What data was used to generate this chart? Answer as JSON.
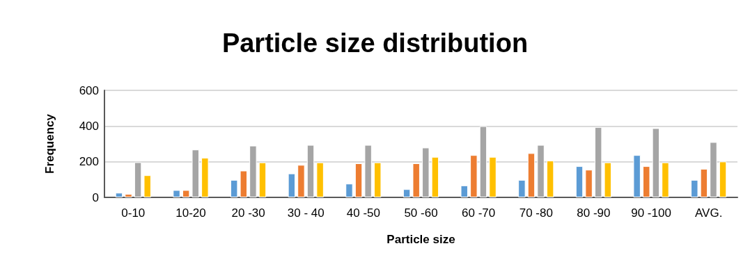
{
  "chart_data": {
    "type": "bar",
    "title": "Particle size distribution",
    "xlabel": "Particle size",
    "ylabel": "Frequency",
    "categories": [
      "0-10",
      "10-20",
      "20 -30",
      "30 - 40",
      "40 -50",
      "50 -60",
      "60 -70",
      "70 -80",
      "80 -90",
      "90 -100",
      "AVG."
    ],
    "series": [
      {
        "color": "#5b9bd5",
        "values": [
          26,
          41,
          98,
          134,
          77,
          46,
          67,
          98,
          175,
          237,
          98
        ]
      },
      {
        "color": "#ed7d31",
        "values": [
          19,
          41,
          150,
          182,
          191,
          191,
          237,
          248,
          155,
          175,
          160
        ]
      },
      {
        "color": "#a5a5a5",
        "values": [
          197,
          268,
          290,
          294,
          294,
          279,
          399,
          294,
          394,
          388,
          310
        ]
      },
      {
        "color": "#ffc000",
        "values": [
          124,
          222,
          196,
          196,
          196,
          227,
          227,
          206,
          196,
          196,
          201
        ]
      }
    ],
    "ylim": [
      0,
      600
    ],
    "yticks": [
      0,
      200,
      400,
      600
    ],
    "grid": "y"
  }
}
